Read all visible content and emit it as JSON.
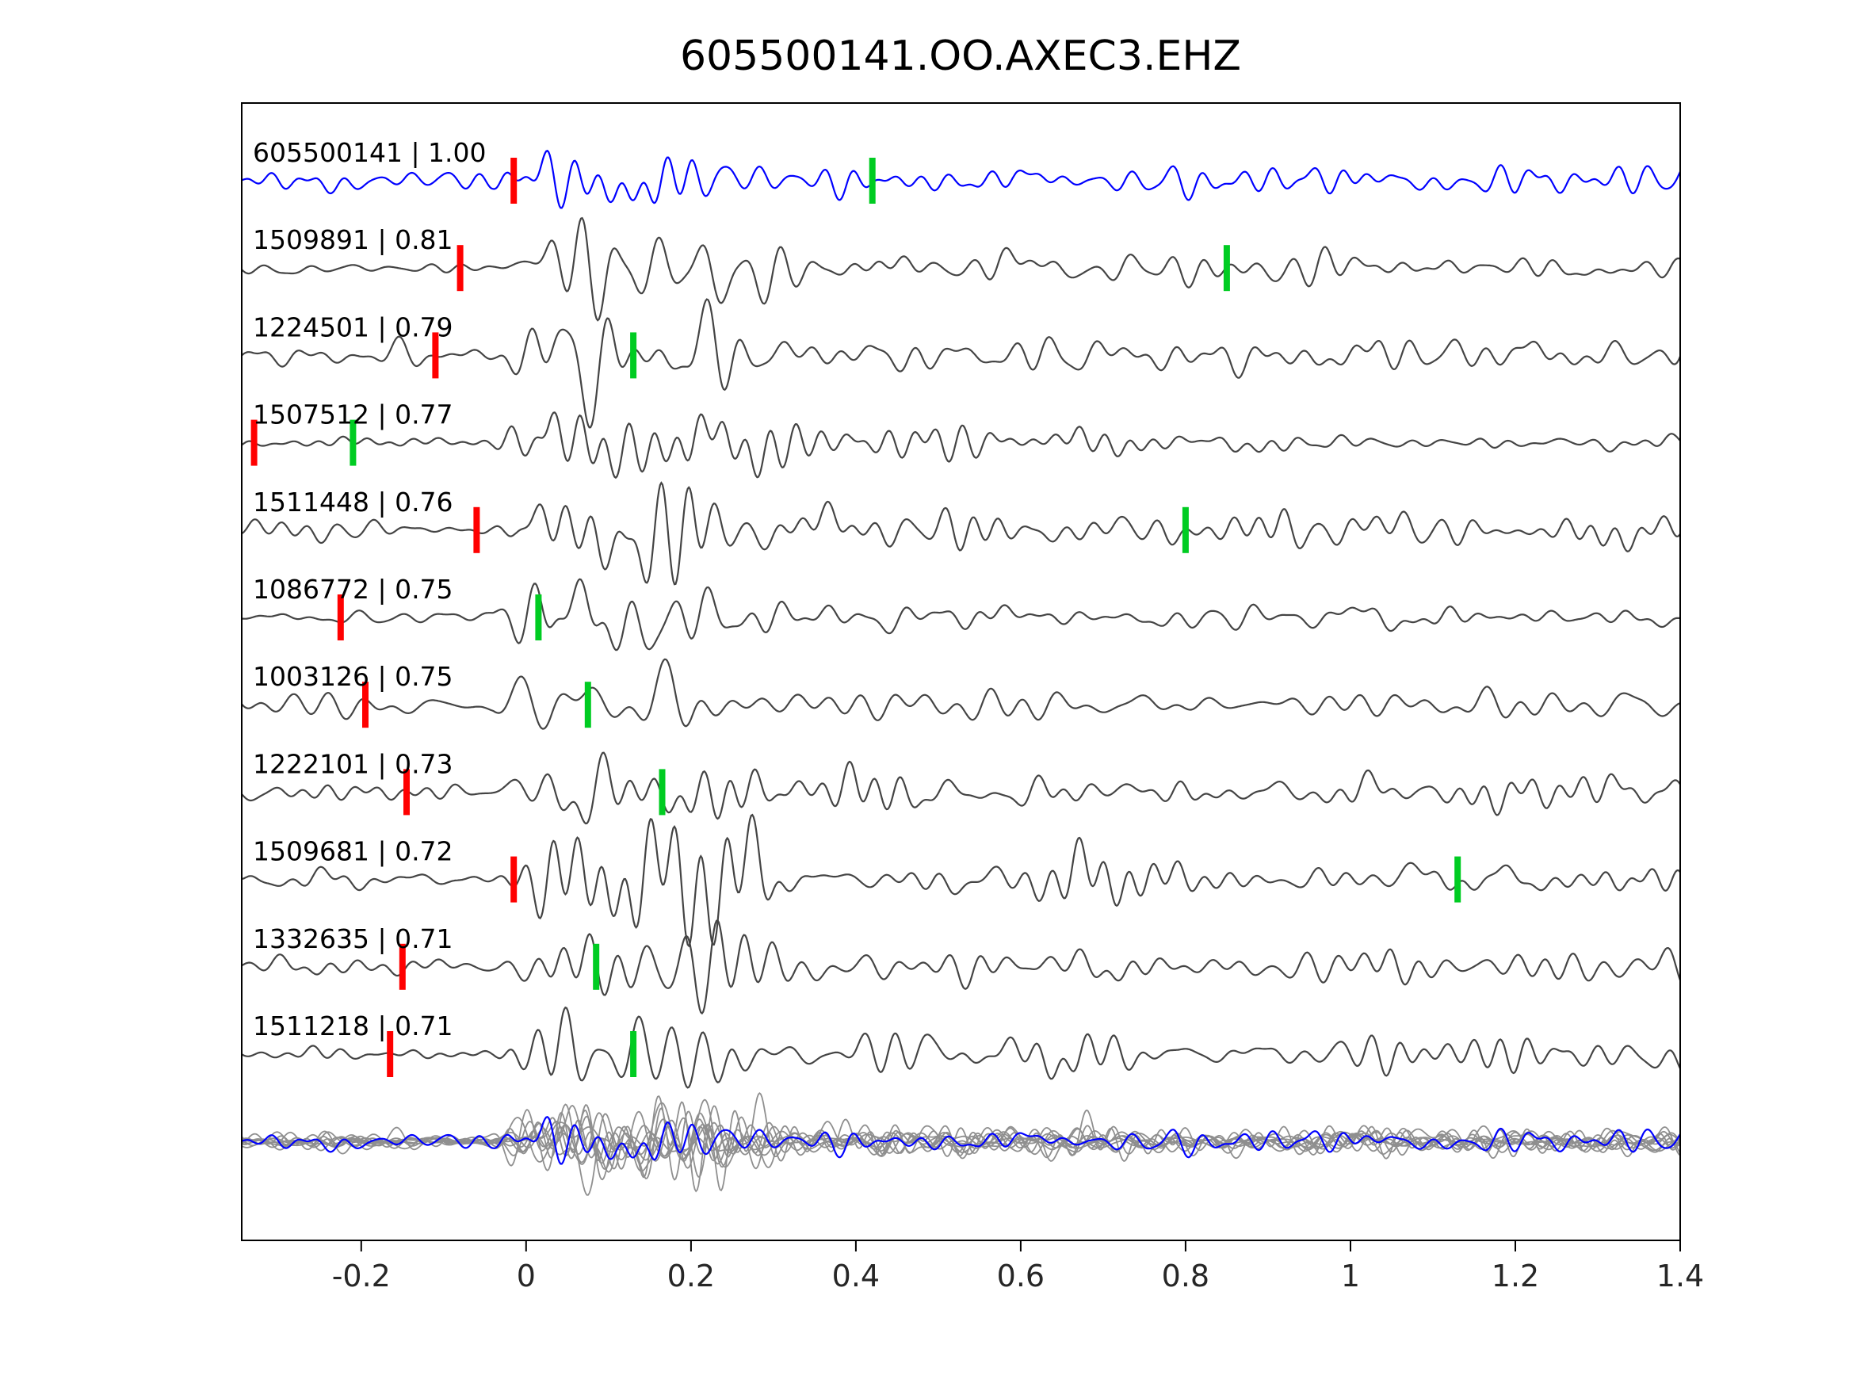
{
  "figure": {
    "title": "605500141.OO.AXEC3.EHZ"
  },
  "chart_data": {
    "type": "line",
    "subtype": "seismogram_section",
    "title": "605500141.OO.AXEC3.EHZ",
    "xlabel": "",
    "ylabel": "",
    "xlim": [
      -0.345,
      1.4
    ],
    "xticks": [
      -0.2,
      0,
      0.2,
      0.4,
      0.6,
      0.8,
      1,
      1.2,
      1.4
    ],
    "xtick_labels": [
      "-0.2",
      "0",
      "0.2",
      "0.4",
      "0.6",
      "0.8",
      "1",
      "1.2",
      "1.4"
    ],
    "grid": false,
    "legend": "none",
    "colors": {
      "template_trace": "#0000ff",
      "match_trace": "#444444",
      "overlay_trace": "#8f8f8f",
      "red_pick": "#ff0000",
      "green_pick": "#00cc22",
      "axis": "#000000",
      "tick_label": "#262626"
    },
    "traces": [
      {
        "id": "605500141",
        "correlation": "1.00",
        "label": "605500141 | 1.00",
        "is_template": true,
        "red_pick": -0.015,
        "green_pick": 0.42
      },
      {
        "id": "1509891",
        "correlation": "0.81",
        "label": "1509891 | 0.81",
        "is_template": false,
        "red_pick": -0.08,
        "green_pick": 0.85
      },
      {
        "id": "1224501",
        "correlation": "0.79",
        "label": "1224501 | 0.79",
        "is_template": false,
        "red_pick": -0.11,
        "green_pick": 0.13
      },
      {
        "id": "1507512",
        "correlation": "0.77",
        "label": "1507512 | 0.77",
        "is_template": false,
        "red_pick": -0.33,
        "green_pick": -0.21
      },
      {
        "id": "1511448",
        "correlation": "0.76",
        "label": "1511448 | 0.76",
        "is_template": false,
        "red_pick": -0.06,
        "green_pick": 0.8
      },
      {
        "id": "1086772",
        "correlation": "0.75",
        "label": "1086772 | 0.75",
        "is_template": false,
        "red_pick": -0.225,
        "green_pick": 0.015
      },
      {
        "id": "1003126",
        "correlation": "0.75",
        "label": "1003126 | 0.75",
        "is_template": false,
        "red_pick": -0.195,
        "green_pick": 0.075
      },
      {
        "id": "1222101",
        "correlation": "0.73",
        "label": "1222101 | 0.73",
        "is_template": false,
        "red_pick": -0.145,
        "green_pick": 0.165
      },
      {
        "id": "1509681",
        "correlation": "0.72",
        "label": "1509681 | 0.72",
        "is_template": false,
        "red_pick": -0.015,
        "green_pick": 1.13
      },
      {
        "id": "1332635",
        "correlation": "0.71",
        "label": "1332635 | 0.71",
        "is_template": false,
        "red_pick": -0.15,
        "green_pick": 0.085
      },
      {
        "id": "1511218",
        "correlation": "0.71",
        "label": "1511218 | 0.71",
        "is_template": false,
        "red_pick": -0.165,
        "green_pick": 0.13
      }
    ],
    "overlay_row": {
      "contains": "all 11 traces overlaid in gray with the template trace highlighted in blue"
    }
  }
}
